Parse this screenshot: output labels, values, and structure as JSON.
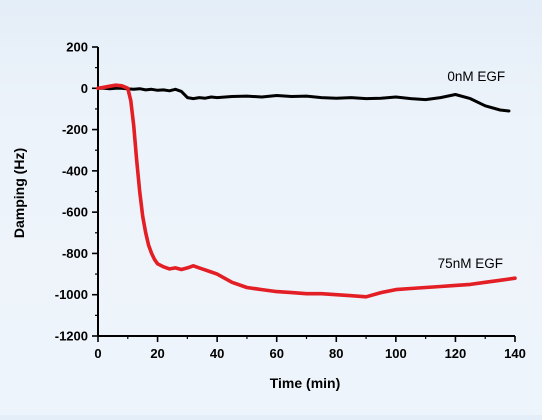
{
  "chart_data": {
    "type": "line",
    "title": "",
    "xlabel": "Time (min)",
    "ylabel": "Damping (Hz)",
    "xlim": [
      0,
      140
    ],
    "ylim": [
      -1200,
      200
    ],
    "xticks": [
      0,
      20,
      40,
      60,
      80,
      100,
      120,
      140
    ],
    "yticks": [
      200,
      0,
      -200,
      -400,
      -600,
      -800,
      -1000,
      -1200
    ],
    "grid": false,
    "legend": "none (series labeled directly on plot)",
    "series": [
      {
        "name": "0nM EGF",
        "color": "#000000",
        "x": [
          0,
          2,
          4,
          6,
          8,
          10,
          12,
          14,
          16,
          18,
          20,
          22,
          24,
          26,
          28,
          30,
          32,
          34,
          36,
          38,
          40,
          45,
          50,
          55,
          60,
          65,
          70,
          75,
          80,
          85,
          90,
          95,
          100,
          105,
          110,
          115,
          120,
          125,
          130,
          135,
          138
        ],
        "y": [
          0,
          0,
          -2,
          0,
          0,
          -3,
          -5,
          -2,
          -8,
          -5,
          -10,
          -8,
          -12,
          -5,
          -15,
          -45,
          -50,
          -45,
          -48,
          -42,
          -45,
          -40,
          -38,
          -42,
          -35,
          -40,
          -38,
          -45,
          -48,
          -45,
          -50,
          -48,
          -42,
          -50,
          -55,
          -45,
          -30,
          -50,
          -85,
          -105,
          -110
        ]
      },
      {
        "name": "75nM EGF",
        "color": "#e31e24",
        "x": [
          0,
          2,
          4,
          6,
          8,
          10,
          11,
          12,
          13,
          14,
          15,
          16,
          17,
          18,
          19,
          20,
          22,
          24,
          26,
          28,
          30,
          32,
          34,
          36,
          38,
          40,
          45,
          50,
          55,
          60,
          65,
          70,
          75,
          80,
          85,
          90,
          95,
          100,
          105,
          110,
          115,
          120,
          125,
          130,
          135,
          140
        ],
        "y": [
          0,
          5,
          10,
          15,
          12,
          0,
          -60,
          -180,
          -350,
          -500,
          -620,
          -700,
          -760,
          -800,
          -830,
          -850,
          -865,
          -875,
          -870,
          -878,
          -870,
          -860,
          -870,
          -880,
          -890,
          -900,
          -940,
          -965,
          -975,
          -985,
          -990,
          -995,
          -995,
          -1000,
          -1005,
          -1010,
          -990,
          -975,
          -970,
          -965,
          -960,
          -955,
          -950,
          -940,
          -930,
          -920
        ]
      }
    ],
    "annotations": [
      {
        "text": "0nM EGF",
        "x": 127,
        "y": 35
      },
      {
        "text": "75nM EGF",
        "x": 125,
        "y": -870
      }
    ]
  }
}
